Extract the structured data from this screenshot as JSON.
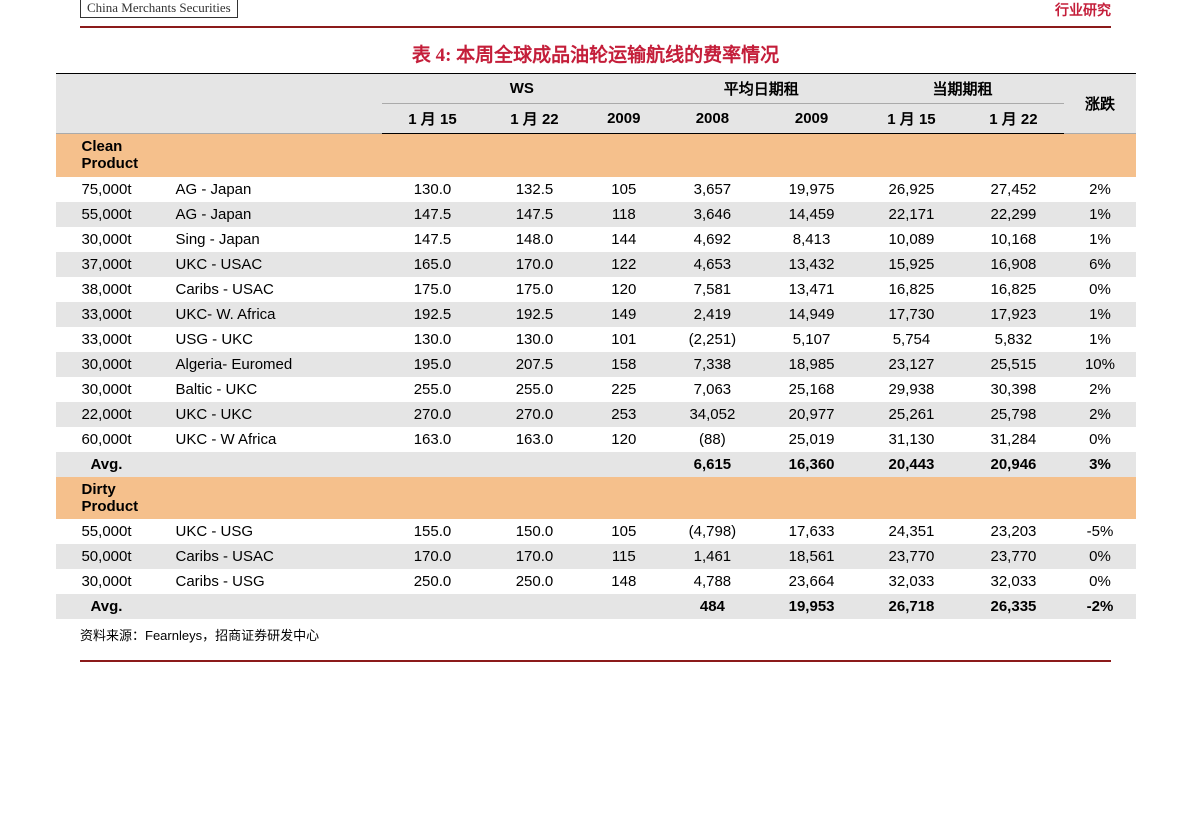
{
  "header": {
    "logo_text": "China Merchants Securities",
    "right_text": "行业研究"
  },
  "title": "表 4:  本周全球成品油轮运输航线的费率情况",
  "colors": {
    "accent": "#C41E3A",
    "rule": "#8B1A1A",
    "header_bg": "#E5E5E5",
    "section_bg": "#F5C08C",
    "alt_row_bg": "#E5E5E5",
    "text": "#000000"
  },
  "columns": {
    "group1_label": "WS",
    "group2_label": "平均日期租",
    "group3_label": "当期期租",
    "change_label": "涨跌",
    "sub": [
      "1 月 15",
      "1 月 22",
      "2009",
      "2008",
      "2009",
      "1 月 15",
      "1 月 22"
    ]
  },
  "sections": [
    {
      "type": "section",
      "label": "Clean\nProduct"
    },
    {
      "type": "row",
      "alt": false,
      "cells": [
        "75,000t",
        "AG - Japan",
        "130.0",
        "132.5",
        "105",
        "3,657",
        "19,975",
        "26,925",
        "27,452",
        "2%"
      ]
    },
    {
      "type": "row",
      "alt": true,
      "cells": [
        "55,000t",
        "AG - Japan",
        "147.5",
        "147.5",
        "118",
        "3,646",
        "14,459",
        "22,171",
        "22,299",
        "1%"
      ]
    },
    {
      "type": "row",
      "alt": false,
      "cells": [
        "30,000t",
        "Sing - Japan",
        "147.5",
        "148.0",
        "144",
        "4,692",
        "8,413",
        "10,089",
        "10,168",
        "1%"
      ]
    },
    {
      "type": "row",
      "alt": true,
      "cells": [
        "37,000t",
        "UKC - USAC",
        "165.0",
        "170.0",
        "122",
        "4,653",
        "13,432",
        "15,925",
        "16,908",
        "6%"
      ]
    },
    {
      "type": "row",
      "alt": false,
      "cells": [
        "38,000t",
        "Caribs - USAC",
        "175.0",
        "175.0",
        "120",
        "7,581",
        "13,471",
        "16,825",
        "16,825",
        "0%"
      ]
    },
    {
      "type": "row",
      "alt": true,
      "cells": [
        "33,000t",
        "UKC- W. Africa",
        "192.5",
        "192.5",
        "149",
        "2,419",
        "14,949",
        "17,730",
        "17,923",
        "1%"
      ]
    },
    {
      "type": "row",
      "alt": false,
      "cells": [
        "33,000t",
        "USG - UKC",
        "130.0",
        "130.0",
        "101",
        "(2,251)",
        "5,107",
        "5,754",
        "5,832",
        "1%"
      ]
    },
    {
      "type": "row",
      "alt": true,
      "cells": [
        "30,000t",
        "Algeria- Euromed",
        "195.0",
        "207.5",
        "158",
        "7,338",
        "18,985",
        "23,127",
        "25,515",
        "10%"
      ]
    },
    {
      "type": "row",
      "alt": false,
      "cells": [
        "30,000t",
        "Baltic - UKC",
        "255.0",
        "255.0",
        "225",
        "7,063",
        "25,168",
        "29,938",
        "30,398",
        "2%"
      ]
    },
    {
      "type": "row",
      "alt": true,
      "cells": [
        "22,000t",
        "UKC - UKC",
        "270.0",
        "270.0",
        "253",
        "34,052",
        "20,977",
        "25,261",
        "25,798",
        "2%"
      ]
    },
    {
      "type": "row",
      "alt": false,
      "cells": [
        "60,000t",
        "UKC - W Africa",
        "163.0",
        "163.0",
        "120",
        "(88)",
        "25,019",
        "31,130",
        "31,284",
        "0%"
      ]
    },
    {
      "type": "row",
      "alt": true,
      "avg": true,
      "cells": [
        "Avg.",
        "",
        "",
        "",
        "",
        "6,615",
        "16,360",
        "20,443",
        "20,946",
        "3%"
      ]
    },
    {
      "type": "section",
      "label": "Dirty\nProduct"
    },
    {
      "type": "row",
      "alt": false,
      "cells": [
        "55,000t",
        "UKC - USG",
        "155.0",
        "150.0",
        "105",
        "(4,798)",
        "17,633",
        "24,351",
        "23,203",
        "-5%"
      ]
    },
    {
      "type": "row",
      "alt": true,
      "cells": [
        "50,000t",
        "Caribs - USAC",
        "170.0",
        "170.0",
        "115",
        "1,461",
        "18,561",
        "23,770",
        "23,770",
        "0%"
      ]
    },
    {
      "type": "row",
      "alt": false,
      "cells": [
        "30,000t",
        "Caribs - USG",
        "250.0",
        "250.0",
        "148",
        "4,788",
        "23,664",
        "32,033",
        "32,033",
        "0%"
      ]
    },
    {
      "type": "row",
      "alt": true,
      "avg": true,
      "cells": [
        "Avg.",
        "",
        "",
        "",
        "",
        "484",
        "19,953",
        "26,718",
        "26,335",
        "-2%"
      ]
    }
  ],
  "source_text": "资料来源：Fearnleys，招商证券研发中心"
}
